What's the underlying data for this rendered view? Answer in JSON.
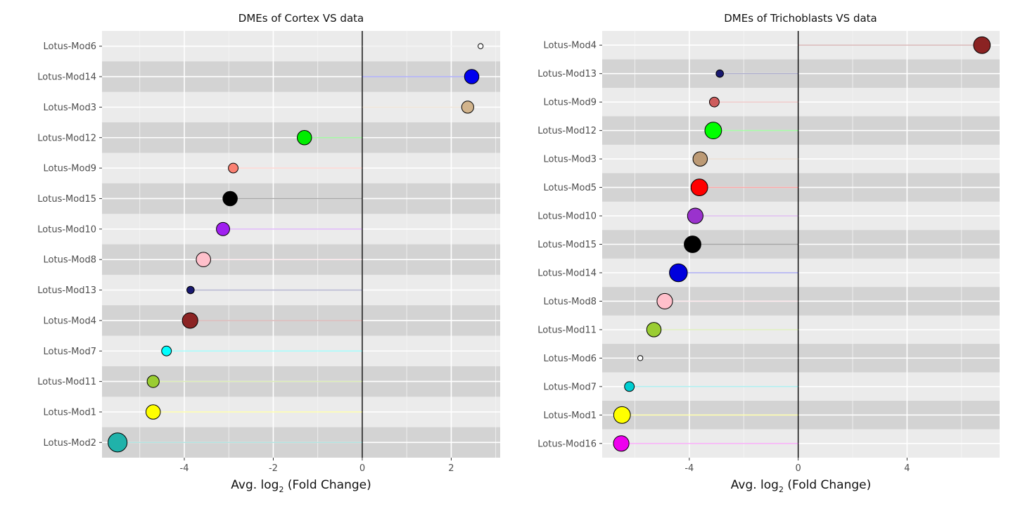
{
  "chart_data": [
    {
      "type": "lollipop",
      "title": "DMEs of Cortex VS data",
      "xlabel": "Avg. log2 (Fold Change)",
      "xlabel_parts": [
        "Avg. log",
        "2",
        " (Fold Change)"
      ],
      "xlim": [
        -5.85,
        3.1
      ],
      "xticks": [
        -4,
        -2,
        0,
        2
      ],
      "x_tick_labels": [
        "-4",
        "-2",
        "0",
        "2"
      ],
      "grid": true,
      "items": [
        {
          "label": "Lotus-Mod6",
          "value": 2.66,
          "color": "#FFFFFF",
          "size_rank": 1
        },
        {
          "label": "Lotus-Mod14",
          "value": 2.46,
          "color": "#0000EE",
          "size_rank": 5
        },
        {
          "label": "Lotus-Mod3",
          "value": 2.37,
          "color": "#D2B48C",
          "size_rank": 4
        },
        {
          "label": "Lotus-Mod12",
          "value": -1.3,
          "color": "#00EE00",
          "size_rank": 5
        },
        {
          "label": "Lotus-Mod9",
          "value": -2.9,
          "color": "#FA8072",
          "size_rank": 3
        },
        {
          "label": "Lotus-Mod15",
          "value": -2.97,
          "color": "#000000",
          "size_rank": 5
        },
        {
          "label": "Lotus-Mod10",
          "value": -3.13,
          "color": "#A020F0",
          "size_rank": 4.5
        },
        {
          "label": "Lotus-Mod8",
          "value": -3.57,
          "color": "#FFC0CB",
          "size_rank": 5
        },
        {
          "label": "Lotus-Mod13",
          "value": -3.86,
          "color": "#191970",
          "size_rank": 2
        },
        {
          "label": "Lotus-Mod4",
          "value": -3.87,
          "color": "#8B2323",
          "size_rank": 5.5
        },
        {
          "label": "Lotus-Mod7",
          "value": -4.4,
          "color": "#00FFFF",
          "size_rank": 3
        },
        {
          "label": "Lotus-Mod11",
          "value": -4.7,
          "color": "#9ACD32",
          "size_rank": 4
        },
        {
          "label": "Lotus-Mod1",
          "value": -4.7,
          "color": "#FFFF00",
          "size_rank": 5
        },
        {
          "label": "Lotus-Mod2",
          "value": -5.5,
          "color": "#20B2AA",
          "size_rank": 7
        }
      ]
    },
    {
      "type": "lollipop",
      "title": "DMEs of Trichoblasts VS data",
      "xlabel": "Avg. log2 (Fold Change)",
      "xlabel_parts": [
        "Avg. log",
        "2",
        " (Fold Change)"
      ],
      "xlim": [
        -7.2,
        7.4
      ],
      "xticks": [
        -4,
        0,
        4
      ],
      "x_tick_labels": [
        "-4",
        "0",
        "4"
      ],
      "grid": true,
      "items": [
        {
          "label": "Lotus-Mod4",
          "value": 6.75,
          "color": "#8B2323",
          "size_rank": 6
        },
        {
          "label": "Lotus-Mod13",
          "value": -2.88,
          "color": "#191970",
          "size_rank": 2
        },
        {
          "label": "Lotus-Mod9",
          "value": -3.08,
          "color": "#CD5C5C",
          "size_rank": 3
        },
        {
          "label": "Lotus-Mod12",
          "value": -3.12,
          "color": "#00FF00",
          "size_rank": 6
        },
        {
          "label": "Lotus-Mod3",
          "value": -3.6,
          "color": "#BC9A75",
          "size_rank": 5
        },
        {
          "label": "Lotus-Mod5",
          "value": -3.63,
          "color": "#FF0000",
          "size_rank": 6
        },
        {
          "label": "Lotus-Mod10",
          "value": -3.78,
          "color": "#9A32CD",
          "size_rank": 5.5
        },
        {
          "label": "Lotus-Mod15",
          "value": -3.88,
          "color": "#000000",
          "size_rank": 6
        },
        {
          "label": "Lotus-Mod14",
          "value": -4.4,
          "color": "#0000DD",
          "size_rank": 6.5
        },
        {
          "label": "Lotus-Mod8",
          "value": -4.9,
          "color": "#FFC0CB",
          "size_rank": 5.5
        },
        {
          "label": "Lotus-Mod11",
          "value": -5.3,
          "color": "#9ACD32",
          "size_rank": 5
        },
        {
          "label": "Lotus-Mod6",
          "value": -5.8,
          "color": "#FFFFFF",
          "size_rank": 1
        },
        {
          "label": "Lotus-Mod7",
          "value": -6.2,
          "color": "#00CED1",
          "size_rank": 3
        },
        {
          "label": "Lotus-Mod1",
          "value": -6.47,
          "color": "#FFFF00",
          "size_rank": 6
        },
        {
          "label": "Lotus-Mod16",
          "value": -6.5,
          "color": "#EE00EE",
          "size_rank": 5.5
        }
      ]
    }
  ]
}
